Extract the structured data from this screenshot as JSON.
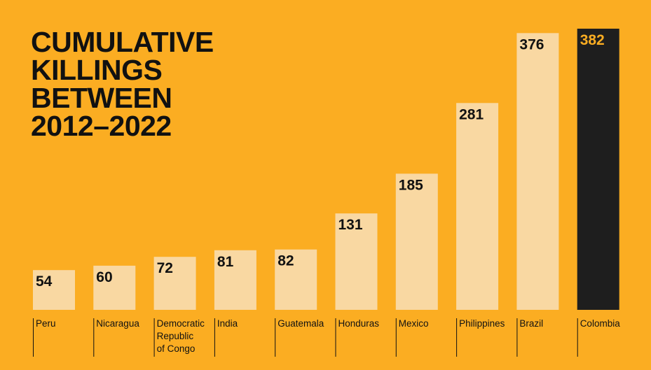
{
  "chart_data": {
    "type": "bar",
    "title_lines": [
      "CUMULATIVE",
      "KILLINGS",
      "BETWEEN",
      "2012–2022"
    ],
    "categories": [
      "Peru",
      "Nicaragua",
      "Democratic Republic of Congo",
      "India",
      "Guatemala",
      "Honduras",
      "Mexico",
      "Philippines",
      "Brazil",
      "Colombia"
    ],
    "category_lines": [
      [
        "Peru"
      ],
      [
        "Nicaragua"
      ],
      [
        "Democratic",
        "Republic",
        "of Congo"
      ],
      [
        "India"
      ],
      [
        "Guatemala"
      ],
      [
        "Honduras"
      ],
      [
        "Mexico"
      ],
      [
        "Philippines"
      ],
      [
        "Brazil"
      ],
      [
        "Colombia"
      ]
    ],
    "values": [
      54,
      60,
      72,
      81,
      82,
      131,
      185,
      281,
      376,
      382
    ],
    "highlight": "Colombia",
    "xlabel": "",
    "ylabel": "",
    "ylim": [
      0,
      382
    ],
    "grid": false,
    "legend": "none"
  },
  "colors": {
    "background": "#FBAD22",
    "bar": "#F9D8A2",
    "highlight_bar": "#1E1E1E",
    "text": "#111111",
    "highlight_text": "#FBAD22"
  }
}
